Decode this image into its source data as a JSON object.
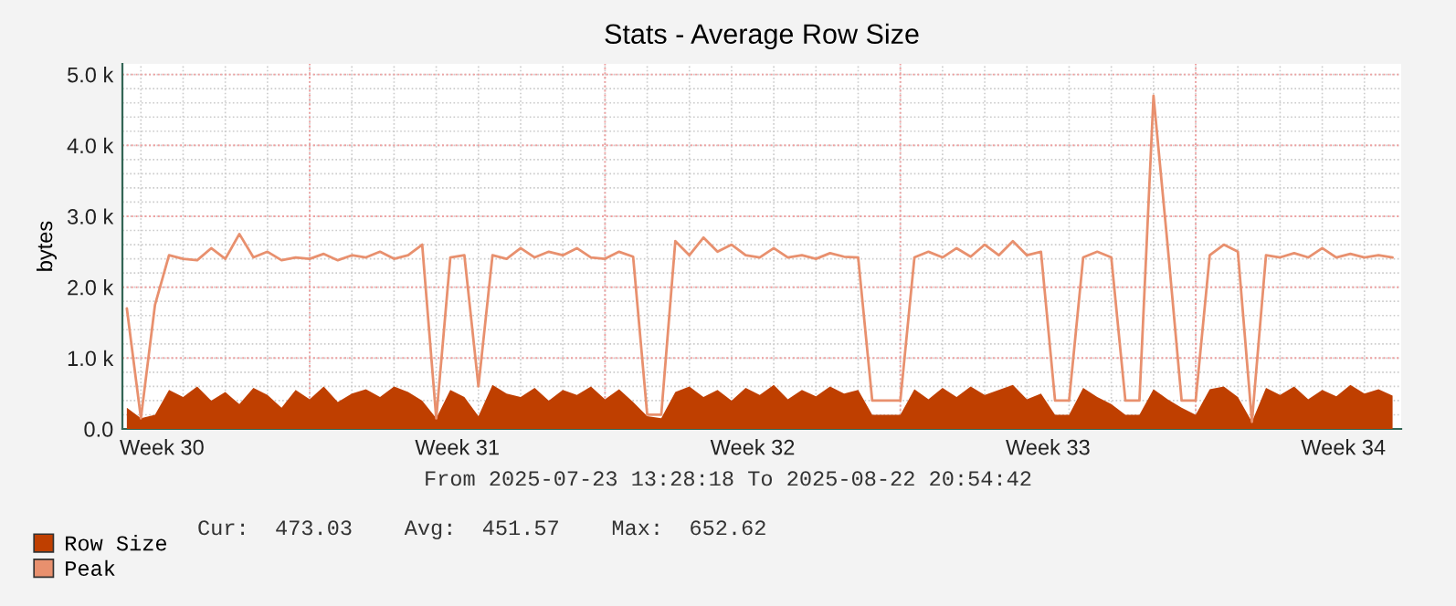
{
  "chart_data": {
    "type": "area",
    "title": "Stats - Average Row Size",
    "ylabel": "bytes",
    "annotations": [
      "From 2025-07-23 13:28:18 To 2025-08-22 20:54:42",
      "Cur:  473.03    Avg:  451.57    Max:  652.62"
    ],
    "x": [
      "2025-07-23T16:00",
      "2025-07-24T00:00",
      "2025-07-24T08:00",
      "2025-07-24T16:00",
      "2025-07-25T00:00",
      "2025-07-25T08:00",
      "2025-07-25T16:00",
      "2025-07-26T00:00",
      "2025-07-26T08:00",
      "2025-07-26T16:00",
      "2025-07-27T00:00",
      "2025-07-27T08:00",
      "2025-07-27T16:00",
      "2025-07-28T00:00",
      "2025-07-28T08:00",
      "2025-07-28T16:00",
      "2025-07-29T00:00",
      "2025-07-29T08:00",
      "2025-07-29T16:00",
      "2025-07-30T00:00",
      "2025-07-30T08:00",
      "2025-07-30T16:00",
      "2025-07-31T00:00",
      "2025-07-31T08:00",
      "2025-07-31T16:00",
      "2025-08-01T00:00",
      "2025-08-01T08:00",
      "2025-08-01T16:00",
      "2025-08-02T00:00",
      "2025-08-02T08:00",
      "2025-08-02T16:00",
      "2025-08-03T00:00",
      "2025-08-03T08:00",
      "2025-08-03T16:00",
      "2025-08-04T00:00",
      "2025-08-04T08:00",
      "2025-08-04T16:00",
      "2025-08-05T00:00",
      "2025-08-05T08:00",
      "2025-08-05T16:00",
      "2025-08-06T00:00",
      "2025-08-06T08:00",
      "2025-08-06T16:00",
      "2025-08-07T00:00",
      "2025-08-07T08:00",
      "2025-08-07T16:00",
      "2025-08-08T00:00",
      "2025-08-08T08:00",
      "2025-08-08T16:00",
      "2025-08-09T00:00",
      "2025-08-09T08:00",
      "2025-08-09T16:00",
      "2025-08-10T00:00",
      "2025-08-10T08:00",
      "2025-08-10T16:00",
      "2025-08-11T00:00",
      "2025-08-11T08:00",
      "2025-08-11T16:00",
      "2025-08-12T00:00",
      "2025-08-12T08:00",
      "2025-08-12T16:00",
      "2025-08-13T00:00",
      "2025-08-13T08:00",
      "2025-08-13T16:00",
      "2025-08-14T00:00",
      "2025-08-14T08:00",
      "2025-08-14T16:00",
      "2025-08-15T00:00",
      "2025-08-15T08:00",
      "2025-08-15T16:00",
      "2025-08-16T00:00",
      "2025-08-16T08:00",
      "2025-08-16T16:00",
      "2025-08-17T00:00",
      "2025-08-17T08:00",
      "2025-08-17T16:00",
      "2025-08-18T00:00",
      "2025-08-18T08:00",
      "2025-08-18T16:00",
      "2025-08-19T00:00",
      "2025-08-19T08:00",
      "2025-08-19T16:00",
      "2025-08-20T00:00",
      "2025-08-20T08:00",
      "2025-08-20T16:00",
      "2025-08-21T00:00",
      "2025-08-21T08:00",
      "2025-08-21T16:00",
      "2025-08-22T00:00",
      "2025-08-22T08:00",
      "2025-08-22T16:00"
    ],
    "series": [
      {
        "name": "Row Size",
        "color": "#bf3f00",
        "values": [
          300,
          150,
          200,
          550,
          450,
          600,
          400,
          520,
          350,
          580,
          480,
          300,
          550,
          420,
          600,
          380,
          500,
          560,
          450,
          600,
          520,
          400,
          150,
          550,
          450,
          180,
          620,
          500,
          450,
          580,
          400,
          550,
          480,
          600,
          420,
          560,
          380,
          180,
          150,
          520,
          600,
          450,
          550,
          400,
          580,
          480,
          620,
          420,
          550,
          460,
          600,
          500,
          550,
          200,
          200,
          200,
          560,
          420,
          580,
          450,
          600,
          480,
          550,
          620,
          420,
          500,
          200,
          200,
          580,
          450,
          350,
          200,
          200,
          560,
          420,
          300,
          200,
          560,
          600,
          450,
          100,
          580,
          480,
          600,
          420,
          550,
          460,
          620,
          500,
          560,
          470
        ]
      },
      {
        "name": "Peak",
        "type": "line",
        "color": "#e8906e",
        "values": [
          1700,
          150,
          1750,
          2450,
          2400,
          2380,
          2550,
          2400,
          2750,
          2420,
          2500,
          2380,
          2420,
          2400,
          2470,
          2380,
          2450,
          2420,
          2500,
          2400,
          2450,
          2600,
          150,
          2420,
          2450,
          600,
          2450,
          2400,
          2550,
          2420,
          2500,
          2450,
          2550,
          2420,
          2400,
          2500,
          2430,
          200,
          200,
          2650,
          2450,
          2700,
          2500,
          2600,
          2450,
          2420,
          2550,
          2420,
          2450,
          2400,
          2480,
          2430,
          2420,
          400,
          400,
          400,
          2420,
          2500,
          2420,
          2550,
          2430,
          2600,
          2450,
          2650,
          2450,
          2500,
          400,
          400,
          2420,
          2500,
          2420,
          400,
          400,
          4700,
          2600,
          400,
          400,
          2450,
          2600,
          2500,
          100,
          2450,
          2420,
          2480,
          2420,
          2550,
          2420,
          2470,
          2420,
          2450,
          2420
        ]
      }
    ],
    "xlim": [
      "2025-07-23T13:28",
      "2025-08-22T20:54"
    ],
    "xticks": [
      {
        "value": "2025-07-24T12:00",
        "label": "Week 30"
      },
      {
        "value": "2025-07-28T00:00",
        "label": null
      },
      {
        "value": "2025-07-31T12:00",
        "label": "Week 31"
      },
      {
        "value": "2025-08-04T00:00",
        "label": null
      },
      {
        "value": "2025-08-07T12:00",
        "label": "Week 32"
      },
      {
        "value": "2025-08-11T00:00",
        "label": null
      },
      {
        "value": "2025-08-14T12:00",
        "label": "Week 33"
      },
      {
        "value": "2025-08-18T00:00",
        "label": null
      },
      {
        "value": "2025-08-21T12:00",
        "label": "Week 34"
      }
    ],
    "ylim": [
      0,
      5150
    ],
    "yticks": [
      {
        "value": 0,
        "label": "0.0"
      },
      {
        "value": 1000,
        "label": "1.0 k"
      },
      {
        "value": 2000,
        "label": "2.0 k"
      },
      {
        "value": 3000,
        "label": "3.0 k"
      },
      {
        "value": 4000,
        "label": "4.0 k"
      },
      {
        "value": 5000,
        "label": "5.0 k"
      }
    ],
    "grid": true,
    "legend": "bottom left"
  }
}
